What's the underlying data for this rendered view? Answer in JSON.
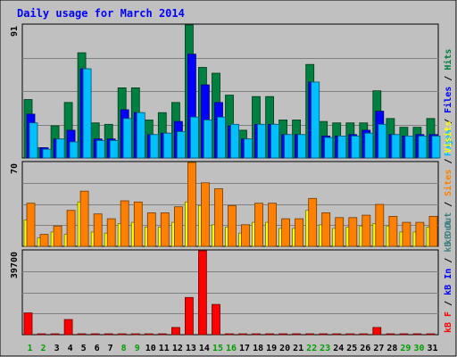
{
  "chart_data": {
    "type": "bar",
    "title": "Daily usage for March 2014",
    "categories": [
      "1",
      "2",
      "3",
      "4",
      "5",
      "6",
      "7",
      "8",
      "9",
      "10",
      "11",
      "12",
      "13",
      "14",
      "15",
      "16",
      "17",
      "18",
      "19",
      "20",
      "21",
      "22",
      "23",
      "24",
      "25",
      "26",
      "27",
      "28",
      "29",
      "30",
      "31"
    ],
    "weekend_days": [
      "1",
      "2",
      "8",
      "9",
      "15",
      "16",
      "22",
      "23",
      "29",
      "30"
    ],
    "panels": [
      {
        "id": "hits",
        "max_label": "91",
        "ylim": [
          0,
          91
        ],
        "series": [
          {
            "name": "Hits",
            "color": "#008040",
            "values": [
              40,
              7,
              22,
              38,
              72,
              24,
              23,
              48,
              48,
              26,
              31,
              38,
              91,
              62,
              58,
              43,
              19,
              42,
              42,
              26,
              26,
              64,
              25,
              24,
              24,
              24,
              46,
              27,
              21,
              21,
              27
            ]
          },
          {
            "name": "Files",
            "color": "#0000ff",
            "values": [
              30,
              7,
              13,
              19,
              61,
              13,
              13,
              33,
              31,
              16,
              17,
              25,
              71,
              50,
              38,
              22,
              13,
              23,
              23,
              16,
              16,
              52,
              15,
              15,
              16,
              19,
              32,
              16,
              15,
              16,
              16
            ]
          },
          {
            "name": "Pages",
            "color": "#00c0ff",
            "values": [
              24,
              6,
              13,
              11,
              61,
              12,
              12,
              27,
              31,
              16,
              17,
              18,
              28,
              26,
              28,
              23,
              13,
              23,
              23,
              16,
              16,
              52,
              14,
              15,
              15,
              17,
              23,
              16,
              15,
              15,
              15
            ]
          }
        ],
        "axis_legend": [
          {
            "text": "Pages",
            "color": "#00c0ff"
          },
          {
            "text": " / ",
            "color": "#000000"
          },
          {
            "text": "Files",
            "color": "#0000ff"
          },
          {
            "text": " / ",
            "color": "#000000"
          },
          {
            "text": "Hits",
            "color": "#008040"
          }
        ]
      },
      {
        "id": "visits",
        "max_label": "70",
        "ylim": [
          0,
          70
        ],
        "series": [
          {
            "name": "Visits",
            "color": "#ffff00",
            "values": [
              22,
              7,
              12,
              10,
              37,
              12,
              11,
              19,
              20,
              16,
              16,
              20,
              37,
              34,
              18,
              16,
              11,
              20,
              20,
              15,
              15,
              30,
              18,
              15,
              16,
              17,
              19,
              17,
              12,
              12,
              16
            ]
          },
          {
            "name": "Sites",
            "color": "#ff8000",
            "values": [
              36,
              10,
              17,
              30,
              46,
              27,
              23,
              38,
              37,
              28,
              28,
              33,
              70,
              53,
              48,
              34,
              18,
              36,
              36,
              23,
              23,
              40,
              28,
              24,
              24,
              26,
              35,
              25,
              20,
              20,
              25
            ]
          }
        ],
        "axis_legend": [
          {
            "text": "kB Out",
            "color": "#408080"
          },
          {
            "text": " / ",
            "color": "#000000"
          },
          {
            "text": "Sites",
            "color": "#ff8000"
          },
          {
            "text": " / ",
            "color": "#000000"
          },
          {
            "text": "Visits",
            "color": "#ffff00"
          }
        ]
      },
      {
        "id": "kbytes",
        "max_label": "39700",
        "ylim": [
          0,
          39700
        ],
        "series": [
          {
            "name": "kB F",
            "color": "#ff0000",
            "values": [
              10300,
              400,
              400,
              7200,
              400,
              400,
              400,
              400,
              400,
              400,
              400,
              3400,
              17600,
              39700,
              14300,
              400,
              400,
              400,
              400,
              400,
              400,
              400,
              400,
              400,
              400,
              400,
              3400,
              400,
              400,
              400,
              400
            ]
          }
        ],
        "axis_legend": [
          {
            "text": "kB F",
            "color": "#ff0000"
          },
          {
            "text": " / ",
            "color": "#000000"
          },
          {
            "text": "kB In",
            "color": "#0000ff"
          },
          {
            "text": " / ",
            "color": "#000000"
          },
          {
            "text": "kB Out",
            "color": "#408080"
          }
        ]
      }
    ],
    "colors": {
      "background": "#c0c0c0",
      "title": "#0000ff",
      "weekday_label": "#000000",
      "weekend_label": "#00a000",
      "grid": "#808080"
    }
  }
}
